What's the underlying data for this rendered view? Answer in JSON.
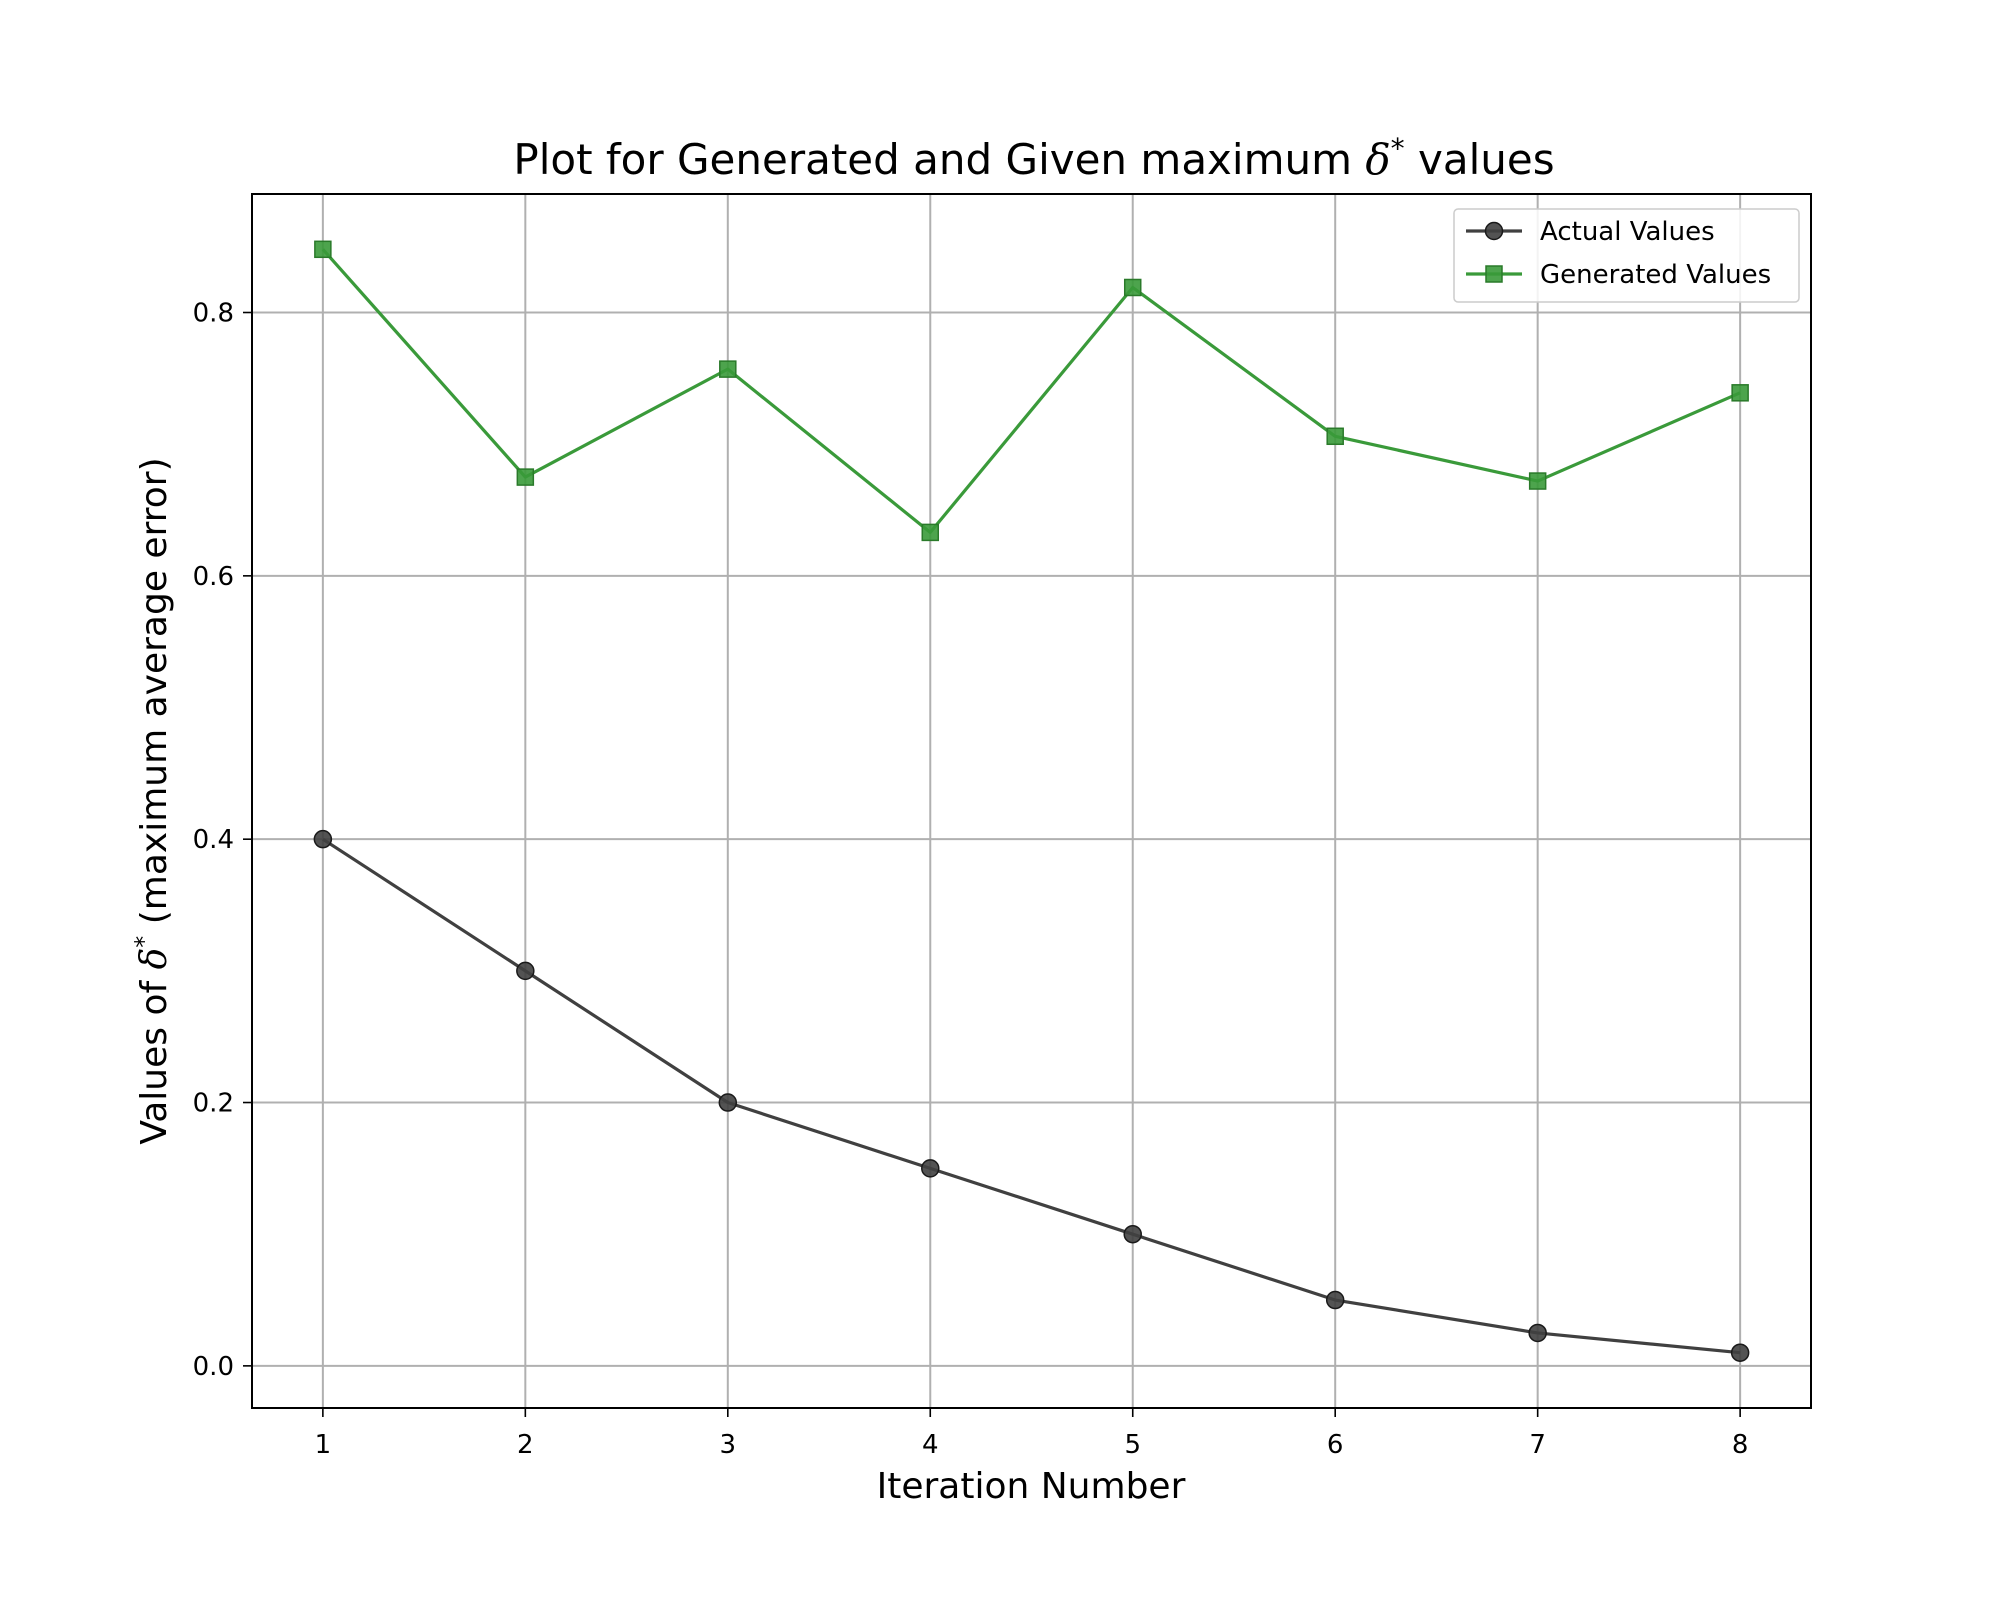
{
  "chart_data": {
    "type": "line",
    "title_prefix": "Plot for Generated and Given maximum ",
    "title_symbol": "δ",
    "title_sup": "*",
    "title_suffix": " values",
    "xlabel": "Iteration Number",
    "ylabel_prefix": "Values of ",
    "ylabel_symbol": "δ",
    "ylabel_sup": "*",
    "ylabel_suffix": " (maximum average error)",
    "x": [
      1,
      2,
      3,
      4,
      5,
      6,
      7,
      8
    ],
    "xticks": [
      "1",
      "2",
      "3",
      "4",
      "5",
      "6",
      "7",
      "8"
    ],
    "yticks": [
      0.0,
      0.2,
      0.4,
      0.6,
      0.8
    ],
    "yticklabels": [
      "0.0",
      "0.2",
      "0.4",
      "0.6",
      "0.8"
    ],
    "xlim": [
      0.65,
      8.35
    ],
    "ylim": [
      -0.032,
      0.89
    ],
    "grid": true,
    "legend_position": "top-right",
    "series": [
      {
        "name": "Actual Values",
        "color": "#404040",
        "marker": "circle",
        "values": [
          0.4,
          0.3,
          0.2,
          0.15,
          0.1,
          0.05,
          0.025,
          0.01
        ]
      },
      {
        "name": "Generated Values",
        "color": "#3a9a3a",
        "marker": "square",
        "values": [
          0.848,
          0.675,
          0.757,
          0.633,
          0.819,
          0.706,
          0.672,
          0.739
        ]
      }
    ]
  }
}
